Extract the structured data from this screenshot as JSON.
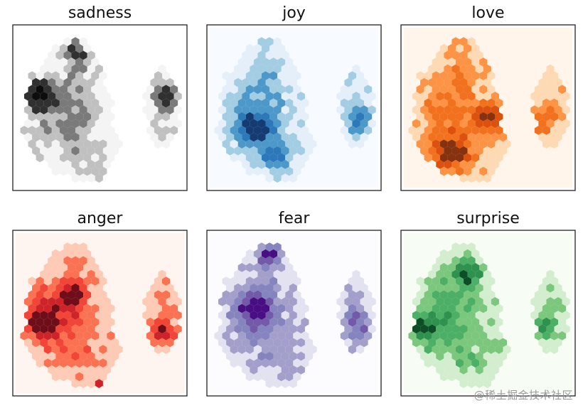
{
  "watermark": "@稀土掘金技术社区",
  "chart_data": [
    {
      "type": "heatmap",
      "title": "sadness",
      "colors": [
        "#ffffff",
        "#f0f0f0",
        "#bdbdbd",
        "#737373",
        "#252525",
        "#000000"
      ]
    },
    {
      "type": "heatmap",
      "title": "joy",
      "colors": [
        "#f7fbff",
        "#deebf7",
        "#9ecae1",
        "#4292c6",
        "#2171b5",
        "#08306b"
      ]
    },
    {
      "type": "heatmap",
      "title": "love",
      "colors": [
        "#fff5eb",
        "#fdd0a2",
        "#fd8d3c",
        "#f16913",
        "#d94801",
        "#7f2704"
      ]
    },
    {
      "type": "heatmap",
      "title": "anger",
      "colors": [
        "#fff5f0",
        "#fcbba1",
        "#fb6a4a",
        "#ef3b2c",
        "#cb181d",
        "#67000d"
      ]
    },
    {
      "type": "heatmap",
      "title": "fear",
      "colors": [
        "#fcfbfd",
        "#dadaeb",
        "#9e9ac8",
        "#807dba",
        "#6a51a3",
        "#3f007d"
      ]
    },
    {
      "type": "heatmap",
      "title": "surprise",
      "colors": [
        "#f7fcf5",
        "#c7e9c0",
        "#74c476",
        "#41ab5d",
        "#238b45",
        "#00441b"
      ]
    }
  ]
}
